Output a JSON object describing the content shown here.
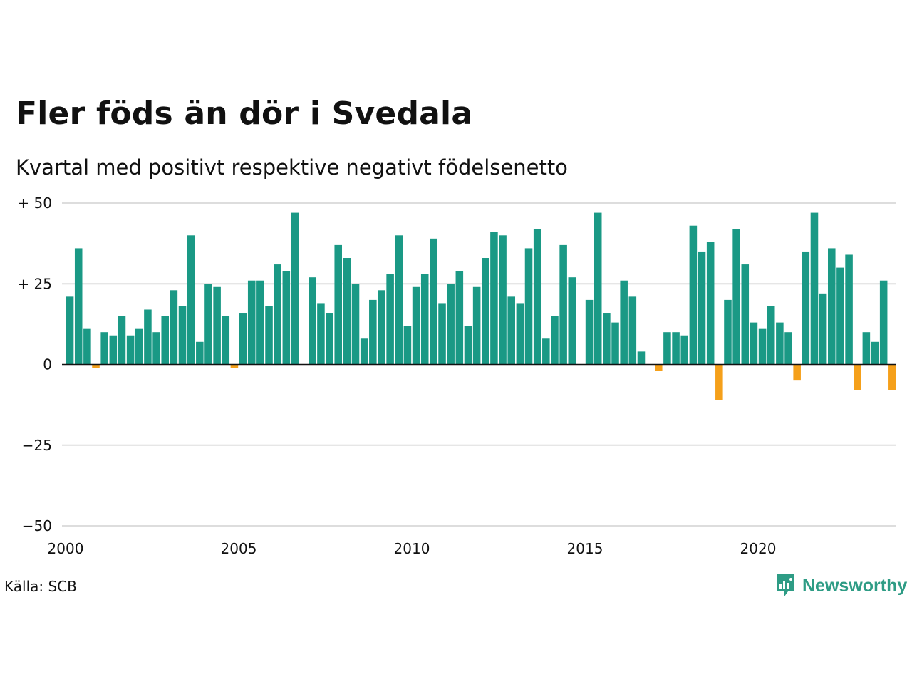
{
  "title": "Fler föds än dör i Svedala",
  "subtitle": "Kvartal med positivt respektive negativt födelsenetto",
  "source": "Källa: SCB",
  "brand": {
    "name": "Newsworthy",
    "icon": "newsworthy-logo-icon",
    "color": "#2e9c85"
  },
  "colors": {
    "positive": "#1a9985",
    "negative": "#f5a01a",
    "grid": "#dddddd",
    "zero_line": "#111111"
  },
  "chart_data": {
    "type": "bar",
    "title": "Fler föds än dör i Svedala",
    "subtitle": "Kvartal med positivt respektive negativt födelsenetto",
    "xlabel": "",
    "ylabel": "",
    "x_start": 2000,
    "x_end": 2024,
    "quarters_per_year": 4,
    "ylim": [
      -50,
      50
    ],
    "yticks": [
      50,
      25,
      0,
      -25,
      -50
    ],
    "ytick_labels": [
      "+ 50",
      "+ 25",
      "0",
      "−25",
      "−50"
    ],
    "xticks": [
      2000,
      2005,
      2010,
      2015,
      2020
    ],
    "xtick_labels": [
      "2000",
      "2005",
      "2010",
      "2015",
      "2020"
    ],
    "grid": true,
    "series": [
      {
        "values": [
          21,
          36,
          11,
          -1,
          10,
          9,
          15,
          9,
          11,
          17,
          10,
          15,
          23,
          18,
          40,
          7,
          25,
          24,
          15,
          -1,
          16,
          26,
          26,
          18,
          31,
          29,
          47,
          0,
          27,
          19,
          16,
          37,
          33,
          25,
          8,
          20,
          23,
          28,
          40,
          12,
          24,
          28,
          39,
          19,
          25,
          29,
          12,
          24,
          33,
          41,
          40,
          21,
          19,
          36,
          42,
          8,
          15,
          37,
          27,
          0,
          20,
          47,
          16,
          13,
          26,
          21,
          4,
          0,
          -2,
          10,
          10,
          9,
          43,
          35,
          38,
          -11,
          20,
          42,
          31,
          13,
          11,
          18,
          13,
          10,
          -5,
          35,
          47,
          22,
          36,
          30,
          34,
          -8,
          10,
          7,
          26,
          -8
        ]
      }
    ]
  }
}
